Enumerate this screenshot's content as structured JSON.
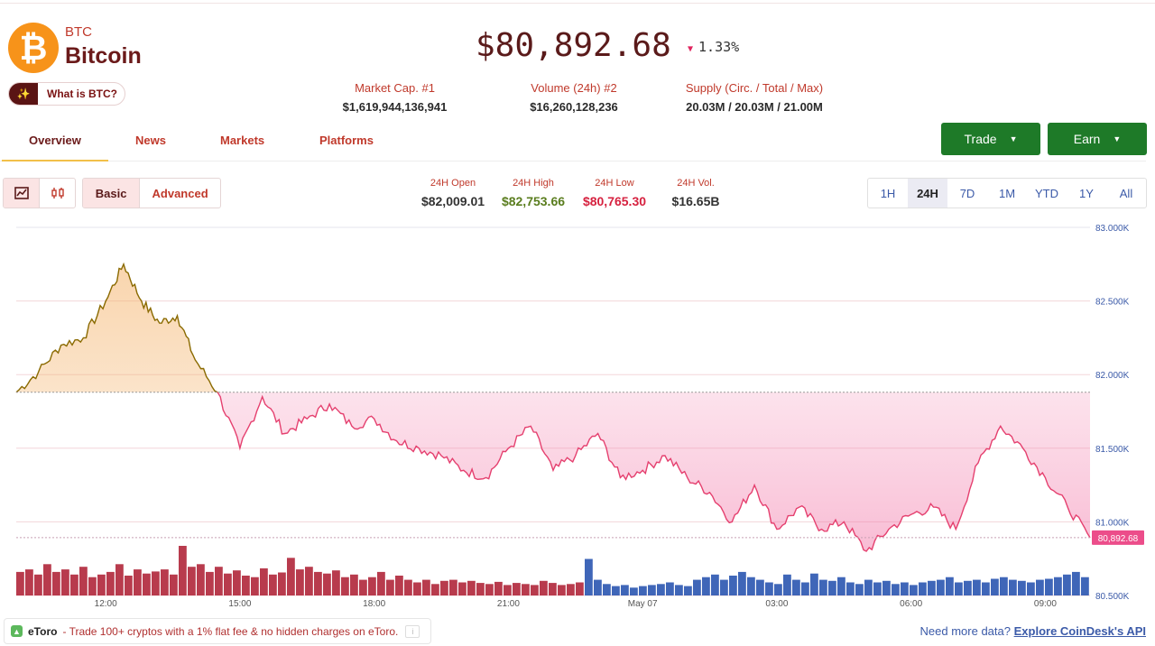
{
  "coin": {
    "logo_glyph": "₿",
    "symbol": "BTC",
    "name": "Bitcoin",
    "what_is_label": "What is BTC?",
    "price": "$80,892.68",
    "change": "1.33%",
    "change_direction": "down",
    "brand_color": "#f7931a"
  },
  "stats": [
    {
      "label": "Market Cap. #1",
      "value": "$1,619,944,136,941"
    },
    {
      "label": "Volume (24h) #2",
      "value": "$16,260,128,236"
    },
    {
      "label": "Supply (Circ. / Total / Max)",
      "value": "20.03M / 20.03M / 21.00M"
    }
  ],
  "actions": {
    "trade_label": "Trade",
    "earn_label": "Earn",
    "accent_color": "#1e7a28"
  },
  "tabs": [
    "Overview",
    "News",
    "Markets",
    "Platforms"
  ],
  "active_tab": "Overview",
  "chart_controls": {
    "line_icon": "line-chart-icon",
    "candle_icon": "candlestick-icon",
    "modes": [
      "Basic",
      "Advanced"
    ],
    "selected_mode": "Basic"
  },
  "ohlc": [
    {
      "label": "24H Open",
      "value": "$82,009.01",
      "color": "#333333"
    },
    {
      "label": "24H High",
      "value": "$82,753.66",
      "color": "#5a7d1e"
    },
    {
      "label": "24H Low",
      "value": "$80,765.30",
      "color": "#d6213f"
    },
    {
      "label": "24H Vol.",
      "value": "$16.65B",
      "color": "#333333"
    }
  ],
  "ranges": [
    "1H",
    "24H",
    "7D",
    "1M",
    "YTD",
    "1Y",
    "All"
  ],
  "selected_range": "24H",
  "chart_data": {
    "type": "area",
    "reference_price": 81880,
    "current_price_label": "80,892.68",
    "current_price": 80892.68,
    "ylim": [
      80500,
      83000
    ],
    "y_ticks": [
      "83.000K",
      "82.500K",
      "82.000K",
      "81.500K",
      "81.000K",
      "80.500K"
    ],
    "y_tick_values": [
      83000,
      82500,
      82000,
      81500,
      81000,
      80500
    ],
    "x_ticks": [
      "12:00",
      "15:00",
      "18:00",
      "21:00",
      "May 07",
      "03:00",
      "06:00",
      "09:00"
    ],
    "x_tick_hours": [
      2,
      5,
      8,
      11,
      14,
      17,
      20,
      23
    ],
    "price_hours": [
      0,
      0.5,
      1,
      1.5,
      2,
      2.4,
      2.8,
      3.2,
      3.6,
      4,
      4.5,
      5,
      5.5,
      6,
      6.5,
      7,
      7.5,
      8,
      8.5,
      9,
      9.5,
      10,
      10.5,
      11,
      11.5,
      12,
      12.5,
      13,
      13.5,
      14,
      14.5,
      15,
      15.5,
      16,
      16.5,
      17,
      17.5,
      18,
      18.5,
      19,
      19.5,
      20,
      20.5,
      21,
      21.5,
      22,
      22.5,
      23,
      23.5,
      24
    ],
    "price_values": [
      81880,
      82020,
      82200,
      82250,
      82500,
      82750,
      82500,
      82350,
      82400,
      82100,
      81880,
      81500,
      81850,
      81600,
      81700,
      81800,
      81650,
      81700,
      81550,
      81500,
      81450,
      81350,
      81300,
      81500,
      81650,
      81350,
      81450,
      81600,
      81300,
      81350,
      81450,
      81300,
      81200,
      81000,
      81250,
      80950,
      81100,
      80950,
      81000,
      80800,
      80950,
      81050,
      81100,
      80950,
      81400,
      81650,
      81500,
      81300,
      81100,
      80892.68
    ],
    "volume_max_label": "",
    "volume_values": [
      0.45,
      0.5,
      0.4,
      0.6,
      0.45,
      0.5,
      0.4,
      0.55,
      0.35,
      0.4,
      0.45,
      0.6,
      0.38,
      0.5,
      0.42,
      0.46,
      0.5,
      0.4,
      0.95,
      0.55,
      0.6,
      0.45,
      0.55,
      0.42,
      0.48,
      0.38,
      0.35,
      0.52,
      0.4,
      0.44,
      0.72,
      0.5,
      0.55,
      0.45,
      0.42,
      0.48,
      0.35,
      0.4,
      0.3,
      0.35,
      0.45,
      0.3,
      0.38,
      0.3,
      0.25,
      0.3,
      0.22,
      0.28,
      0.3,
      0.25,
      0.28,
      0.24,
      0.22,
      0.26,
      0.2,
      0.24,
      0.22,
      0.2,
      0.28,
      0.24,
      0.2,
      0.22,
      0.25,
      0.7,
      0.3,
      0.22,
      0.18,
      0.2,
      0.15,
      0.18,
      0.2,
      0.22,
      0.25,
      0.2,
      0.18,
      0.3,
      0.35,
      0.4,
      0.3,
      0.38,
      0.45,
      0.35,
      0.3,
      0.25,
      0.22,
      0.4,
      0.3,
      0.25,
      0.42,
      0.3,
      0.28,
      0.35,
      0.25,
      0.22,
      0.3,
      0.25,
      0.28,
      0.22,
      0.25,
      0.2,
      0.25,
      0.28,
      0.3,
      0.35,
      0.25,
      0.28,
      0.3,
      0.25,
      0.32,
      0.35,
      0.3,
      0.28,
      0.25,
      0.3,
      0.32,
      0.35,
      0.4,
      0.45,
      0.35
    ]
  },
  "footer": {
    "ad_badge_icon": "etoro-logo-icon",
    "ad_brand": "eToro",
    "ad_text": "- Trade 100+ cryptos with a 1% flat fee & no hidden charges on eToro.",
    "ad_info_glyph": "i",
    "api_prefix": "Need more data?",
    "api_link": "Explore CoinDesk's API"
  }
}
